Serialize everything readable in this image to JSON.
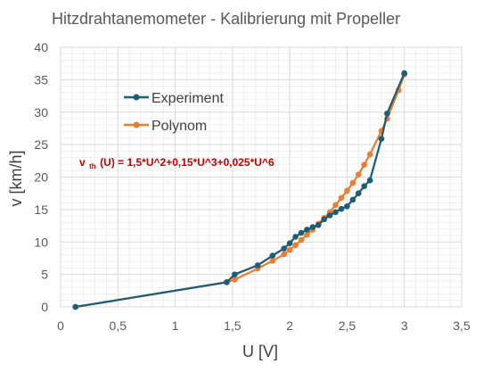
{
  "chart_data": {
    "type": "line",
    "title": "Hitzdrahtanemometer - Kalibrierung mit Propeller",
    "xlabel": "U [V]",
    "ylabel": "v [km/h]",
    "xlim": [
      0,
      3.5
    ],
    "ylim": [
      0,
      40
    ],
    "x_ticks": [
      "0",
      "0,5",
      "1",
      "1,5",
      "2",
      "2,5",
      "3",
      "3,5"
    ],
    "y_ticks": [
      "0",
      "5",
      "10",
      "15",
      "20",
      "25",
      "30",
      "35",
      "40"
    ],
    "grid": true,
    "legend_position": "upper-left",
    "annotation": {
      "prefix": "v",
      "subscript": "th",
      "formula": "(U) = 1,5*U^2+0,15*U^3+0,025*U^6"
    },
    "series": [
      {
        "name": "Experiment",
        "color": "#1d5e75",
        "points": [
          [
            0.13,
            0.0
          ],
          [
            1.45,
            3.8
          ],
          [
            1.52,
            5.0
          ],
          [
            1.72,
            6.4
          ],
          [
            1.85,
            7.9
          ],
          [
            1.95,
            9.0
          ],
          [
            2.0,
            9.8
          ],
          [
            2.05,
            10.8
          ],
          [
            2.1,
            11.4
          ],
          [
            2.15,
            11.9
          ],
          [
            2.2,
            12.3
          ],
          [
            2.25,
            12.6
          ],
          [
            2.3,
            13.5
          ],
          [
            2.35,
            14.1
          ],
          [
            2.4,
            14.6
          ],
          [
            2.45,
            15.1
          ],
          [
            2.5,
            15.5
          ],
          [
            2.55,
            16.5
          ],
          [
            2.6,
            17.5
          ],
          [
            2.65,
            18.6
          ],
          [
            2.7,
            19.5
          ],
          [
            2.8,
            25.9
          ],
          [
            2.85,
            29.8
          ],
          [
            3.0,
            36.0
          ]
        ]
      },
      {
        "name": "Polynom",
        "color": "#ed7d31",
        "points": [
          [
            0.13,
            0.0
          ],
          [
            1.45,
            3.8
          ],
          [
            1.52,
            4.2
          ],
          [
            1.72,
            5.9
          ],
          [
            1.85,
            7.1
          ],
          [
            1.95,
            8.1
          ],
          [
            2.0,
            8.8
          ],
          [
            2.05,
            9.5
          ],
          [
            2.1,
            10.3
          ],
          [
            2.15,
            11.1
          ],
          [
            2.2,
            11.9
          ],
          [
            2.25,
            12.8
          ],
          [
            2.3,
            13.7
          ],
          [
            2.35,
            14.6
          ],
          [
            2.4,
            15.7
          ],
          [
            2.45,
            16.8
          ],
          [
            2.5,
            17.9
          ],
          [
            2.55,
            19.1
          ],
          [
            2.6,
            20.4
          ],
          [
            2.65,
            21.9
          ],
          [
            2.7,
            23.5
          ],
          [
            2.8,
            27.1
          ],
          [
            2.85,
            29.0
          ],
          [
            2.95,
            33.4
          ],
          [
            3.0,
            35.8
          ]
        ]
      }
    ]
  }
}
